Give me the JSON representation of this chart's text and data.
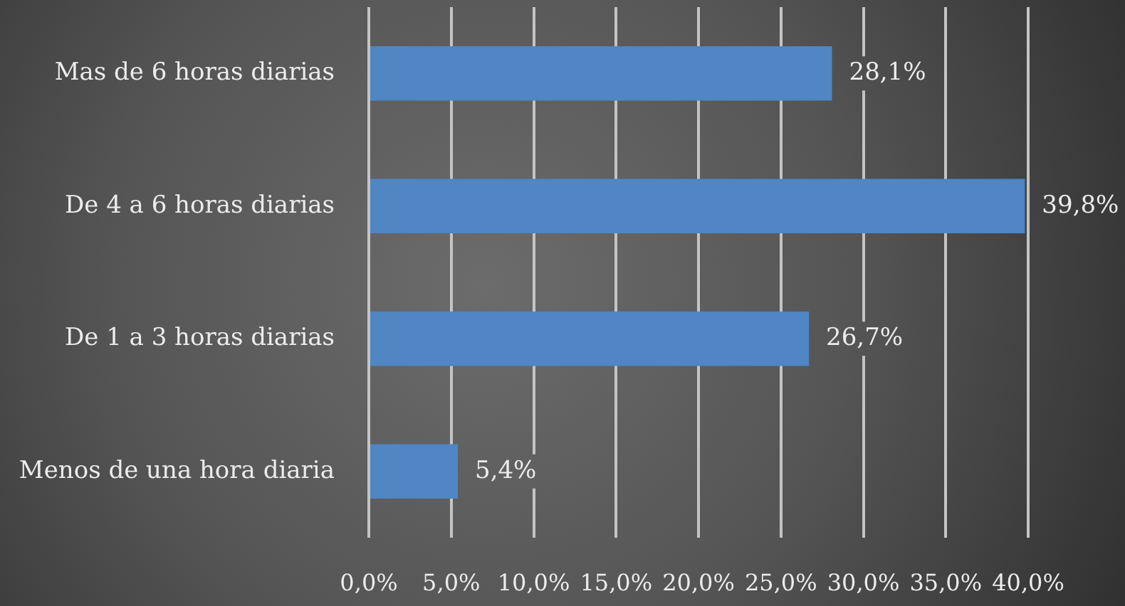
{
  "chart_data": {
    "type": "bar",
    "orientation": "horizontal",
    "categories": [
      "Mas de 6 horas diarias",
      "De 4 a 6 horas diarias",
      "De 1 a 3 horas diarias",
      "Menos de una hora diaria"
    ],
    "values": [
      28.1,
      39.8,
      26.7,
      5.4
    ],
    "color": "#4f86c3",
    "value_labels": [
      "28,1%",
      "39,8%",
      "26,7%",
      "5,4%"
    ],
    "xlim": [
      0,
      40
    ],
    "xticks": [
      {
        "value": 0,
        "label": "0,0%"
      },
      {
        "value": 5,
        "label": "5,0%"
      },
      {
        "value": 10,
        "label": "10,0%"
      },
      {
        "value": 15,
        "label": "15,0%"
      },
      {
        "value": 20,
        "label": "20,0%"
      },
      {
        "value": 25,
        "label": "25,0%"
      },
      {
        "value": 30,
        "label": "30,0%"
      },
      {
        "value": 35,
        "label": "35,0%"
      },
      {
        "value": 40,
        "label": "40,0%"
      }
    ],
    "grid": "x",
    "legend": false
  }
}
